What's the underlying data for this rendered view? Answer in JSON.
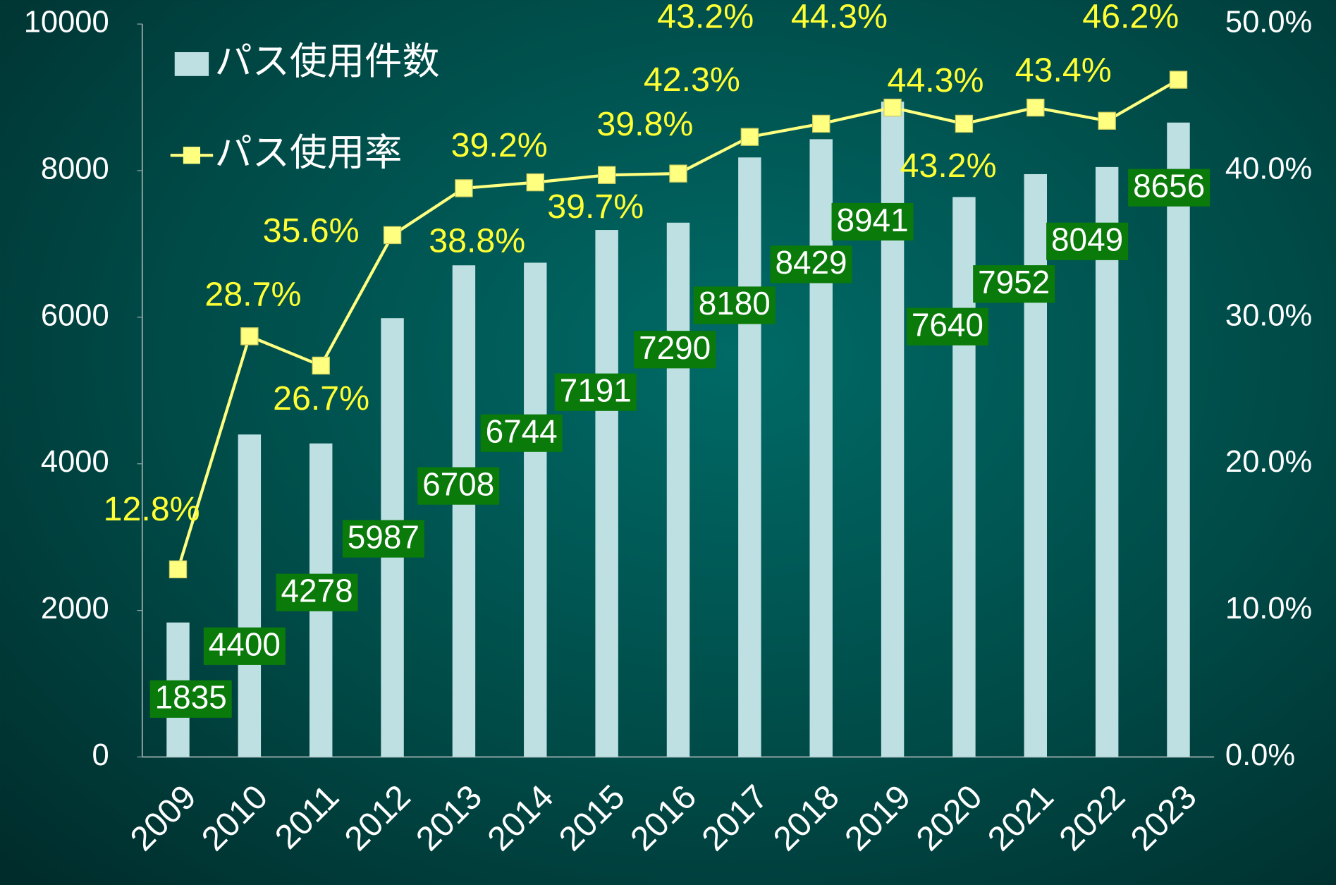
{
  "chart_data": {
    "type": "bar_line",
    "categories": [
      "2009",
      "2010",
      "2011",
      "2012",
      "2013",
      "2014",
      "2015",
      "2016",
      "2017",
      "2018",
      "2019",
      "2020",
      "2021",
      "2022",
      "2023"
    ],
    "series": [
      {
        "name": "パス使用件数",
        "type": "bar",
        "color": "#bfe0e3",
        "label_color": "#0a7a0a",
        "values": [
          1835,
          4400,
          4278,
          5987,
          6708,
          6744,
          7191,
          7290,
          8180,
          8429,
          8941,
          7640,
          7952,
          8049,
          8656
        ]
      },
      {
        "name": "パス使用率",
        "type": "line",
        "axis": "y2",
        "color": "#ffff80",
        "label_color": "#ffff33",
        "values": [
          12.8,
          28.7,
          26.7,
          35.6,
          38.8,
          39.2,
          39.7,
          39.8,
          42.3,
          43.2,
          44.3,
          43.2,
          44.3,
          43.4,
          46.2
        ],
        "value_labels": [
          "12.8%",
          "28.7%",
          "26.7%",
          "35.6%",
          "38.8%",
          "39.2%",
          "39.7%",
          "39.8%",
          "42.3%",
          "43.2%",
          "44.3%",
          "43.2%",
          "44.3%",
          "43.4%",
          "46.2%"
        ]
      }
    ],
    "ylim": [
      0,
      10000
    ],
    "yticks": [
      0,
      2000,
      4000,
      6000,
      8000,
      10000
    ],
    "y2lim": [
      0,
      50
    ],
    "y2ticks": [
      {
        "value": 0,
        "label": "0.0%"
      },
      {
        "value": 10,
        "label": "10.0%"
      },
      {
        "value": 20,
        "label": "20.0%"
      },
      {
        "value": 30,
        "label": "30.0%"
      },
      {
        "value": 40,
        "label": "40.0%"
      },
      {
        "value": 50,
        "label": "50.0%"
      }
    ],
    "legend": "top-left"
  }
}
